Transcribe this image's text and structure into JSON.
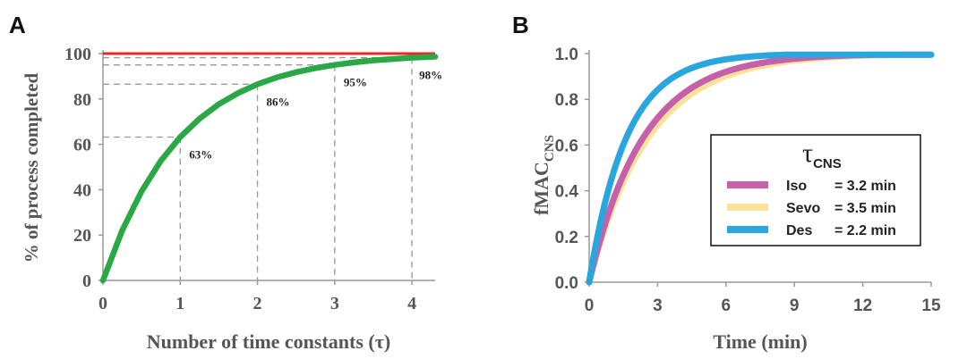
{
  "panel_a_letter": "A",
  "panel_b_letter": "B",
  "chart_data": [
    {
      "type": "line",
      "panel": "A",
      "xlabel": "Number of time constants (τ)",
      "ylabel": "% of process completed",
      "xlim": [
        0,
        4.3
      ],
      "ylim": [
        0,
        100
      ],
      "xticks": [
        "0",
        "1",
        "2",
        "3",
        "4"
      ],
      "yticks": [
        "0",
        "20",
        "40",
        "60",
        "80",
        "100"
      ],
      "series": [
        {
          "color": "#2aa845",
          "x": [
            0,
            0.25,
            0.5,
            0.75,
            1,
            1.25,
            1.5,
            1.75,
            2,
            2.25,
            2.5,
            2.75,
            3,
            3.25,
            3.5,
            3.75,
            4,
            4.3
          ],
          "values": [
            0,
            22.1,
            39.3,
            52.8,
            63.2,
            71.3,
            77.7,
            82.6,
            86.5,
            89.5,
            91.8,
            93.6,
            95,
            96.1,
            97,
            97.6,
            98.2,
            98.6
          ]
        },
        {
          "color": "#e8262a",
          "x": [
            0,
            4.3
          ],
          "values": [
            100,
            100
          ]
        }
      ],
      "annotations": [
        {
          "x": 1,
          "y": 63.2,
          "label": "63%"
        },
        {
          "x": 2,
          "y": 86.5,
          "label": "86%"
        },
        {
          "x": 3,
          "y": 95.0,
          "label": "95%"
        },
        {
          "x": 4,
          "y": 98.2,
          "label": "98%"
        }
      ],
      "grid": false
    },
    {
      "type": "line",
      "panel": "B",
      "xlabel": "Time (min)",
      "ylabel_main": "fMAC",
      "ylabel_sub": "CNS",
      "xlim": [
        0,
        15
      ],
      "ylim": [
        0,
        1.0
      ],
      "xticks": [
        "0",
        "3",
        "6",
        "9",
        "12",
        "15"
      ],
      "yticks": [
        "0.0",
        "0.2",
        "0.4",
        "0.6",
        "0.8",
        "1.0"
      ],
      "legend_title_main": "τ",
      "legend_title_sub": "CNS",
      "legend_position": "center-right",
      "series": [
        {
          "name": "Iso",
          "value_text": "= 3.2 min",
          "tau": 3.2,
          "color": "#c660a8"
        },
        {
          "name": "Sevo",
          "value_text": "= 3.5 min",
          "tau": 3.5,
          "color": "#f9e29a"
        },
        {
          "name": "Des",
          "value_text": "= 2.2 min",
          "tau": 2.2,
          "color": "#2aa6df"
        }
      ],
      "grid": false
    }
  ]
}
